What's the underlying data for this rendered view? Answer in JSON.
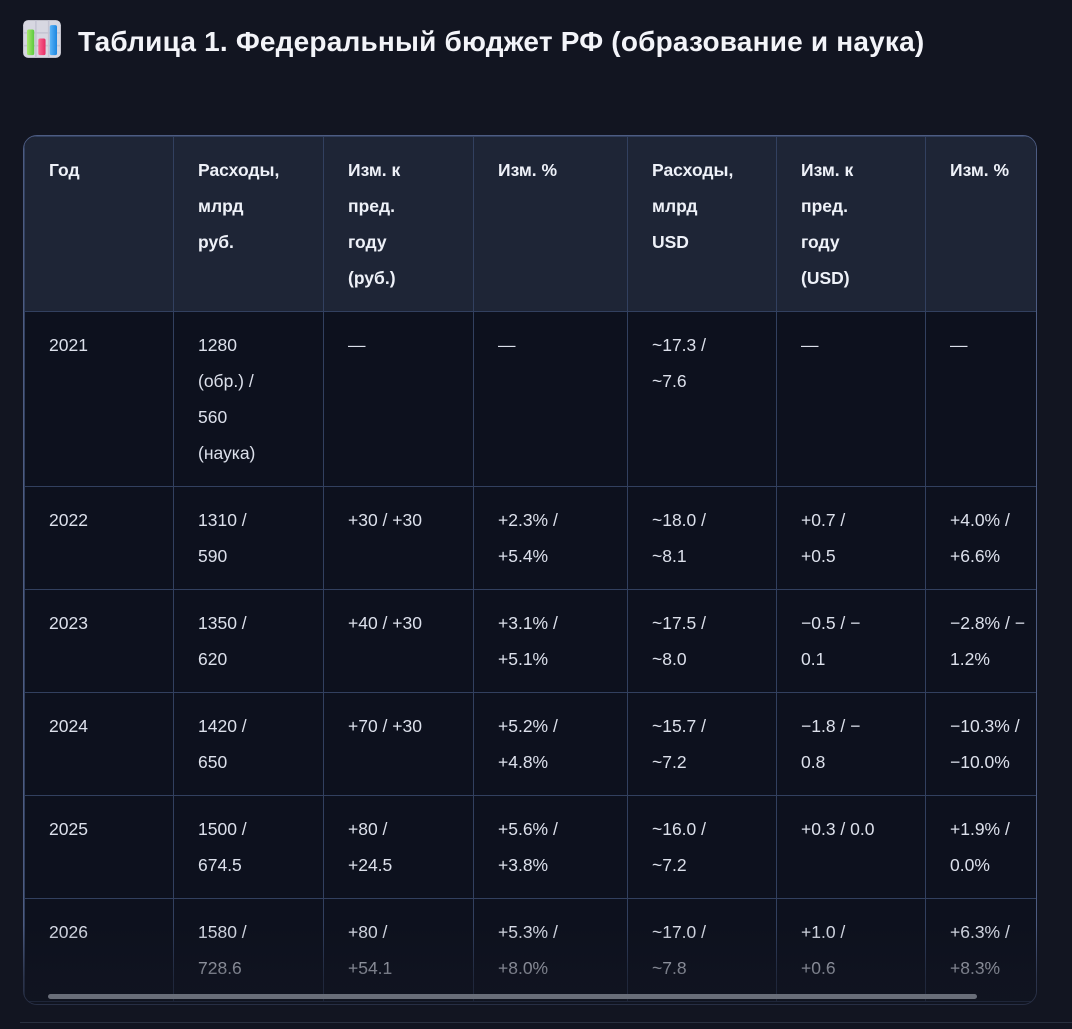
{
  "title": {
    "icon": "bar-chart-emoji",
    "text": "Таблица 1. Федеральный бюджет РФ (образование и наука)"
  },
  "table": {
    "columns": [
      "Год",
      "Расходы,\nмлрд\nруб.",
      "Изм. к\nпред.\nгоду\n(руб.)",
      "Изм. %",
      "Расходы,\nмлрд\nUSD",
      "Изм. к\nпред.\nгоду\n(USD)",
      "Изм. %"
    ],
    "rows": [
      {
        "cells": [
          "2021",
          "1280\n(обр.) /\n560\n(наука)",
          "—",
          "—",
          "~17.3 /\n~7.6",
          "—",
          "—"
        ]
      },
      {
        "cells": [
          "2022",
          "1310 /\n590",
          "+30 / +30",
          "+2.3% /\n+5.4%",
          "~18.0 /\n~8.1",
          "+0.7 /\n+0.5",
          "+4.0% /\n+6.6%"
        ]
      },
      {
        "cells": [
          "2023",
          "1350 /\n620",
          "+40 / +30",
          "+3.1% /\n+5.1%",
          "~17.5 /\n~8.0",
          "−0.5 / −\n0.1",
          "−2.8% / −\n1.2%"
        ]
      },
      {
        "cells": [
          "2024",
          "1420 /\n650",
          "+70 / +30",
          "+5.2% /\n+4.8%",
          "~15.7 /\n~7.2",
          "−1.8 / −\n0.8",
          "−10.3% /\n−10.0%"
        ]
      },
      {
        "cells": [
          "2025",
          "1500 /\n674.5",
          "+80 /\n+24.5",
          "+5.6% /\n+3.8%",
          "~16.0 /\n~7.2",
          "+0.3 / 0.0",
          "+1.9% /\n0.0%"
        ]
      },
      {
        "cells": [
          "2026",
          "1580 /\n728.6",
          "+80 /\n+54.1",
          "+5.3% /\n+8.0%",
          "~17.0 /\n~7.8",
          "+1.0 /\n+0.6",
          "+6.3% /\n+8.3%"
        ]
      }
    ]
  },
  "colors": {
    "table_border_accent": "#4d5c82",
    "icon_bar_green": "#6fd24a",
    "icon_bar_pink": "#ef3e74",
    "icon_bar_blue": "#2f9cf3"
  }
}
